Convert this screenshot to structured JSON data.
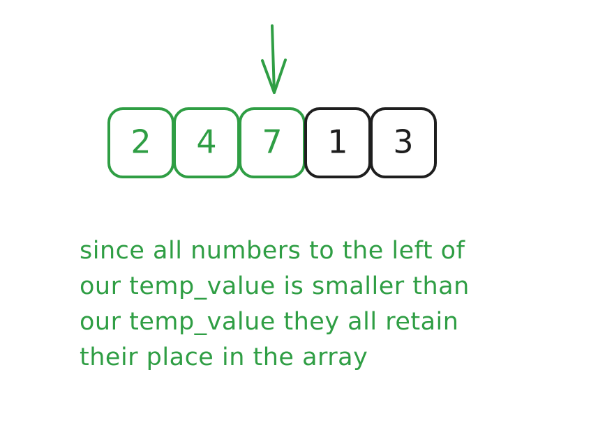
{
  "colors": {
    "highlight": "#2f9e44",
    "default": "#1e1e1e",
    "background": "#ffffff"
  },
  "array": {
    "cells": [
      {
        "value": "2",
        "state": "sorted"
      },
      {
        "value": "4",
        "state": "sorted"
      },
      {
        "value": "7",
        "state": "sorted"
      },
      {
        "value": "1",
        "state": "unsorted"
      },
      {
        "value": "3",
        "state": "unsorted"
      }
    ],
    "pointer_index": 2
  },
  "caption": {
    "lines": [
      "since all numbers to the left of",
      "our temp_value is smaller than",
      "our temp_value they all retain",
      "their place in the array"
    ]
  }
}
